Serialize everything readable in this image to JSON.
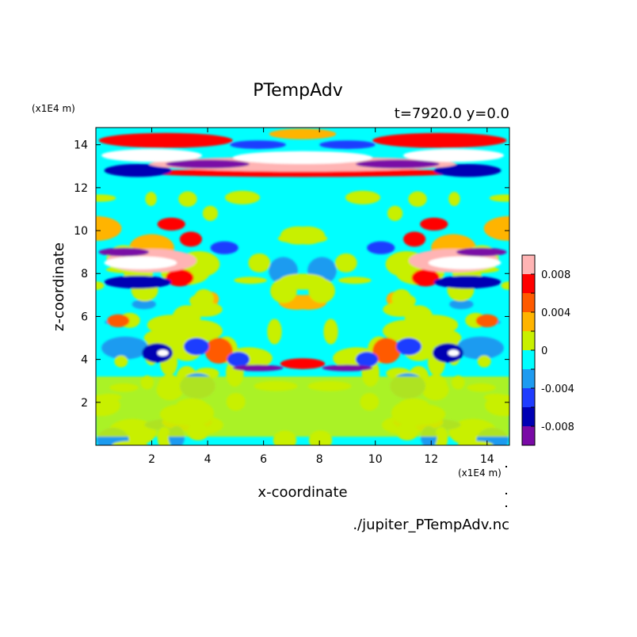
{
  "chart_data": {
    "type": "heatmap",
    "title": "PTempAdv",
    "subtitle": "t=7920.0 y=0.0",
    "xlabel": "x-coordinate",
    "ylabel": "z-coordinate",
    "x_unit": "(x1E4 m)",
    "y_unit": "(x1E4 m)",
    "xlim": [
      0,
      14.8
    ],
    "ylim": [
      0,
      14.8
    ],
    "x_ticks": [
      2,
      4,
      6,
      8,
      10,
      12,
      14
    ],
    "y_ticks": [
      2,
      4,
      6,
      8,
      10,
      12,
      14
    ],
    "x_tick_labels": [
      "2",
      "4",
      "6",
      "8",
      "10",
      "12",
      "14"
    ],
    "y_tick_labels": [
      "2",
      "4",
      "6",
      "8",
      "10",
      "12",
      "14"
    ],
    "colorbar": {
      "levels": [
        -0.01,
        -0.008,
        -0.006,
        -0.004,
        -0.002,
        0,
        0.002,
        0.004,
        0.006,
        0.008,
        0.01
      ],
      "colors": [
        "#7a0aa6",
        "#0000b4",
        "#1f3cff",
        "#1e9bf0",
        "#00ffff",
        "#c8f000",
        "#ffb400",
        "#ff5a00",
        "#ff0000",
        "#ffb4b4"
      ],
      "tick_values": [
        0.008,
        0.004,
        0,
        -0.004,
        -0.008
      ],
      "tick_labels": [
        "0.008",
        "0.004",
        "0",
        "-0.004",
        "-0.008"
      ]
    },
    "footer": "./jupiter_PTempAdv.nc",
    "blobs": [
      {
        "x": 2.2,
        "z": 4.3,
        "rx": 0.55,
        "rz": 0.45,
        "v": -0.007
      },
      {
        "x": 2.4,
        "z": 4.3,
        "rx": 0.2,
        "rz": 0.15,
        "v": 0.012
      },
      {
        "x": 3.6,
        "z": 4.6,
        "rx": 0.45,
        "rz": 0.4,
        "v": -0.006
      },
      {
        "x": 4.4,
        "z": 4.4,
        "rx": 0.5,
        "rz": 0.6,
        "v": 0.004
      },
      {
        "x": 5.1,
        "z": 4.0,
        "rx": 0.4,
        "rz": 0.35,
        "v": -0.005
      },
      {
        "x": 5.8,
        "z": 3.6,
        "rx": 0.9,
        "rz": 0.15,
        "v": -0.009
      },
      {
        "x": 9.0,
        "z": 3.6,
        "rx": 0.9,
        "rz": 0.15,
        "v": -0.009
      },
      {
        "x": 7.4,
        "z": 3.8,
        "rx": 0.8,
        "rz": 0.25,
        "v": 0.006
      },
      {
        "x": 9.7,
        "z": 4.0,
        "rx": 0.4,
        "rz": 0.35,
        "v": -0.005
      },
      {
        "x": 10.4,
        "z": 4.4,
        "rx": 0.5,
        "rz": 0.6,
        "v": 0.004
      },
      {
        "x": 11.2,
        "z": 4.6,
        "rx": 0.45,
        "rz": 0.4,
        "v": -0.006
      },
      {
        "x": 12.6,
        "z": 4.3,
        "rx": 0.55,
        "rz": 0.45,
        "v": -0.007
      },
      {
        "x": 12.8,
        "z": 4.3,
        "rx": 0.2,
        "rz": 0.15,
        "v": 0.012
      },
      {
        "x": 1.5,
        "z": 7.6,
        "rx": 1.2,
        "rz": 0.3,
        "v": -0.007
      },
      {
        "x": 2.0,
        "z": 8.6,
        "rx": 1.6,
        "rz": 0.55,
        "v": 0.008
      },
      {
        "x": 1.6,
        "z": 8.5,
        "rx": 1.3,
        "rz": 0.3,
        "v": 0.012
      },
      {
        "x": 1.0,
        "z": 9.0,
        "rx": 0.9,
        "rz": 0.2,
        "v": -0.009
      },
      {
        "x": 3.0,
        "z": 7.8,
        "rx": 0.5,
        "rz": 0.4,
        "v": 0.006
      },
      {
        "x": 3.4,
        "z": 9.6,
        "rx": 0.4,
        "rz": 0.35,
        "v": 0.007
      },
      {
        "x": 4.6,
        "z": 9.2,
        "rx": 0.5,
        "rz": 0.3,
        "v": -0.005
      },
      {
        "x": 12.8,
        "z": 8.6,
        "rx": 1.6,
        "rz": 0.55,
        "v": 0.008
      },
      {
        "x": 13.2,
        "z": 8.5,
        "rx": 1.3,
        "rz": 0.3,
        "v": 0.012
      },
      {
        "x": 13.8,
        "z": 9.0,
        "rx": 0.9,
        "rz": 0.2,
        "v": -0.009
      },
      {
        "x": 13.3,
        "z": 7.6,
        "rx": 1.2,
        "rz": 0.3,
        "v": -0.007
      },
      {
        "x": 11.8,
        "z": 7.8,
        "rx": 0.5,
        "rz": 0.4,
        "v": 0.006
      },
      {
        "x": 11.4,
        "z": 9.6,
        "rx": 0.4,
        "rz": 0.35,
        "v": 0.007
      },
      {
        "x": 10.2,
        "z": 9.2,
        "rx": 0.5,
        "rz": 0.3,
        "v": -0.005
      },
      {
        "x": 2.5,
        "z": 14.2,
        "rx": 2.4,
        "rz": 0.35,
        "v": 0.006
      },
      {
        "x": 12.3,
        "z": 14.2,
        "rx": 2.4,
        "rz": 0.35,
        "v": 0.006
      },
      {
        "x": 2.0,
        "z": 13.5,
        "rx": 1.8,
        "rz": 0.3,
        "v": 0.012
      },
      {
        "x": 12.8,
        "z": 13.5,
        "rx": 1.8,
        "rz": 0.3,
        "v": 0.012
      },
      {
        "x": 7.4,
        "z": 13.1,
        "rx": 5.5,
        "rz": 0.35,
        "v": 0.009
      },
      {
        "x": 7.4,
        "z": 13.4,
        "rx": 2.5,
        "rz": 0.3,
        "v": 0.012
      },
      {
        "x": 7.4,
        "z": 12.7,
        "rx": 5.8,
        "rz": 0.2,
        "v": 0.006
      },
      {
        "x": 4.0,
        "z": 13.1,
        "rx": 1.5,
        "rz": 0.2,
        "v": -0.009
      },
      {
        "x": 10.8,
        "z": 13.1,
        "rx": 1.5,
        "rz": 0.2,
        "v": -0.009
      },
      {
        "x": 1.5,
        "z": 12.8,
        "rx": 1.2,
        "rz": 0.3,
        "v": -0.007
      },
      {
        "x": 13.3,
        "z": 12.8,
        "rx": 1.2,
        "rz": 0.3,
        "v": -0.007
      },
      {
        "x": 5.8,
        "z": 14.0,
        "rx": 1.0,
        "rz": 0.2,
        "v": -0.006
      },
      {
        "x": 9.0,
        "z": 14.0,
        "rx": 1.0,
        "rz": 0.2,
        "v": -0.006
      },
      {
        "x": 7.4,
        "z": 14.5,
        "rx": 1.2,
        "rz": 0.25,
        "v": 0.003
      },
      {
        "x": 2.7,
        "z": 10.3,
        "rx": 0.5,
        "rz": 0.3,
        "v": 0.006
      },
      {
        "x": 12.1,
        "z": 10.3,
        "rx": 0.5,
        "rz": 0.3,
        "v": 0.006
      },
      {
        "x": 0.8,
        "z": 5.8,
        "rx": 0.4,
        "rz": 0.3,
        "v": 0.005
      },
      {
        "x": 14.0,
        "z": 5.8,
        "rx": 0.4,
        "rz": 0.3,
        "v": 0.005
      }
    ]
  }
}
